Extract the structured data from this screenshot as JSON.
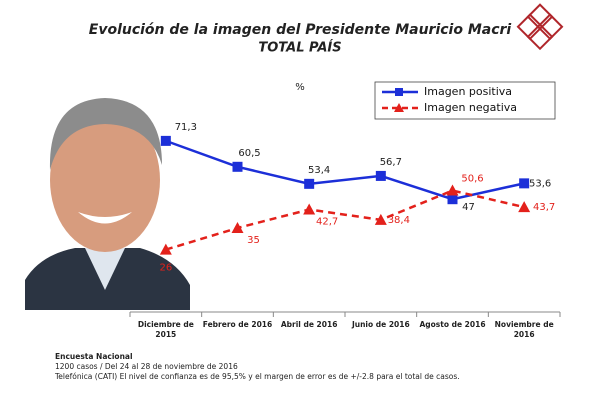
{
  "chart_data": {
    "type": "line",
    "title": "Evolución de la imagen del Presidente Mauricio Macri",
    "subtitle": "TOTAL PAÍS",
    "y_label": "%",
    "categories": [
      "Diciembre de 2015",
      "Febrero de 2016",
      "Abril de 2016",
      "Junio de 2016",
      "Agosto de 2016",
      "Noviembre de 2016"
    ],
    "series": [
      {
        "name": "Imagen positiva",
        "color": "#1c2fd8",
        "marker": "square",
        "dashed": false,
        "values": [
          71.3,
          60.5,
          53.4,
          56.7,
          47,
          53.6
        ],
        "value_labels": [
          "71,3",
          "60,5",
          "53,4",
          "56,7",
          "47",
          "53,6"
        ]
      },
      {
        "name": "Imagen negativa",
        "color": "#e3211b",
        "marker": "triangle",
        "dashed": true,
        "values": [
          26,
          35,
          42.7,
          38.4,
          50.6,
          43.7
        ],
        "value_labels": [
          "26",
          "35",
          "42,7",
          "38,4",
          "50,6",
          "43,7"
        ]
      }
    ],
    "ylim": [
      0,
      80
    ],
    "legend": "top-right",
    "notes": [
      "Encuesta Nacional",
      "1200 casos / Del 24 al 28 de noviembre de 2016",
      "Telefónica (CATI)   El nivel de confianza es de 95,5% y el margen de error es de +/-2.8 para el total de casos."
    ]
  }
}
